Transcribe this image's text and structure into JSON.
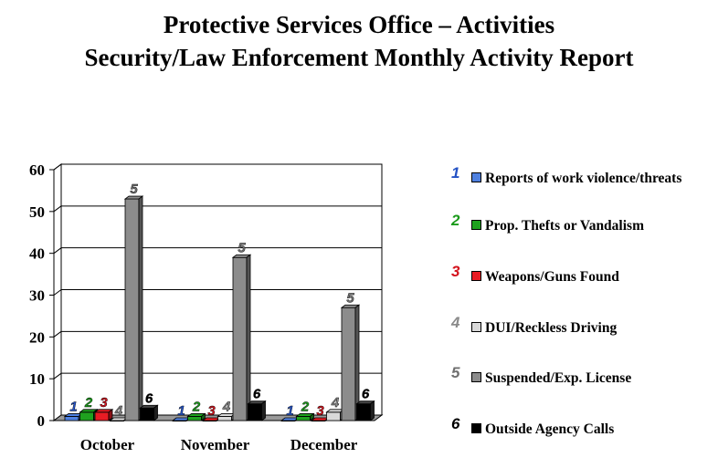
{
  "title_line1": "Protective Services Office – Activities",
  "title_line2": "Security/Law Enforcement Monthly Activity Report",
  "chart_data": {
    "type": "bar",
    "categories": [
      "October",
      "November",
      "December"
    ],
    "ylim": [
      0,
      60
    ],
    "yticks": [
      "0",
      "10",
      "20",
      "30",
      "40",
      "50",
      "60"
    ],
    "grid": true,
    "legend_position": "right",
    "series": [
      {
        "name": "Reports of work violence/threats",
        "marker": "1",
        "color": "#4f81e0",
        "label_color": "#2452c4",
        "values": [
          1,
          0,
          0
        ]
      },
      {
        "name": "Prop. Thefts or Vandalism",
        "marker": "2",
        "color": "#1fa11f",
        "label_color": "#1a9a1a",
        "values": [
          2,
          1,
          1
        ]
      },
      {
        "name": "Weapons/Guns Found",
        "marker": "3",
        "color": "#e81c24",
        "label_color": "#d4141e",
        "values": [
          2,
          0,
          0
        ]
      },
      {
        "name": "DUI/Reckless Driving",
        "marker": "4",
        "color": "#d9d9d9",
        "label_color": "#8a8a8a",
        "values": [
          0,
          1,
          2
        ]
      },
      {
        "name": "Suspended/Exp. License",
        "marker": "5",
        "color": "#8c8c8c",
        "label_color": "#6f6f6f",
        "values": [
          53,
          39,
          27
        ]
      },
      {
        "name": "Outside Agency Calls",
        "marker": "6",
        "color": "#000000",
        "label_color": "#000000",
        "values": [
          3,
          4,
          4
        ]
      }
    ]
  }
}
